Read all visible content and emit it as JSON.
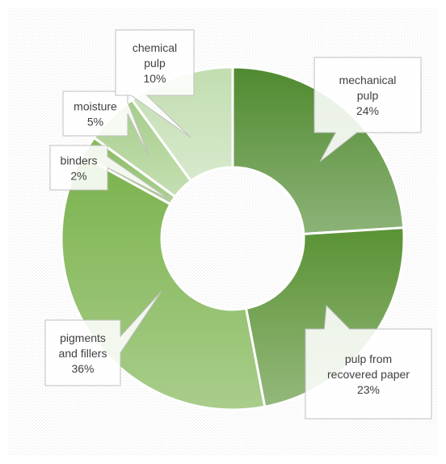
{
  "chart_data": {
    "type": "pie",
    "variant": "doughnut",
    "title": "",
    "legend": "none",
    "slices": [
      {
        "label_lines": [
          "mechanical",
          "pulp"
        ],
        "value": 24,
        "value_label": "24%",
        "color": "#4f8a2f"
      },
      {
        "label_lines": [
          "pulp from",
          "recovered paper"
        ],
        "value": 23,
        "value_label": "23%",
        "color": "#5a9234"
      },
      {
        "label_lines": [
          "pigments",
          "and fillers"
        ],
        "value": 36,
        "value_label": "36%",
        "color": "#7ab24c"
      },
      {
        "label_lines": [
          "binders"
        ],
        "value": 2,
        "value_label": "2%",
        "color": "#86b95e"
      },
      {
        "label_lines": [
          "moisture"
        ],
        "value": 5,
        "value_label": "5%",
        "color": "#a5cd8a"
      },
      {
        "label_lines": [
          "chemical",
          "pulp"
        ],
        "value": 10,
        "value_label": "10%",
        "color": "#c2ddb0"
      }
    ]
  }
}
